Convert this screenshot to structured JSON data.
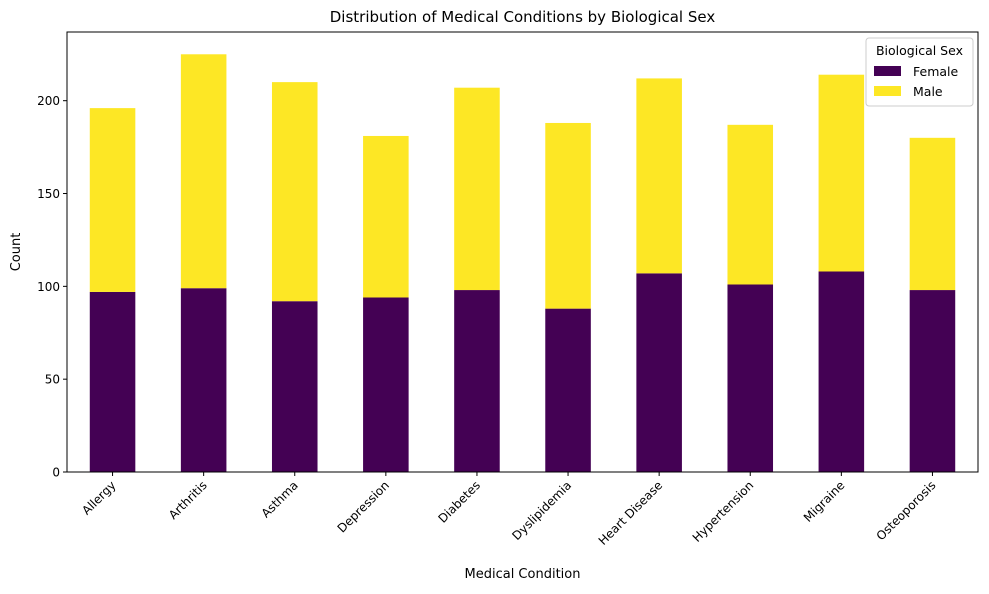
{
  "chart_data": {
    "type": "bar",
    "stacked": true,
    "title": "Distribution of Medical Conditions by Biological Sex",
    "xlabel": "Medical Condition",
    "ylabel": "Count",
    "categories": [
      "Allergy",
      "Arthritis",
      "Asthma",
      "Depression",
      "Diabetes",
      "Dyslipidemia",
      "Heart Disease",
      "Hypertension",
      "Migraine",
      "Osteoporosis"
    ],
    "series": [
      {
        "name": "Female",
        "color": "#440154",
        "values": [
          97,
          99,
          92,
          94,
          98,
          88,
          107,
          101,
          108,
          98
        ]
      },
      {
        "name": "Male",
        "color": "#fde725",
        "values": [
          99,
          126,
          118,
          87,
          109,
          100,
          105,
          86,
          106,
          82
        ]
      }
    ],
    "yticks": [
      0,
      50,
      100,
      150,
      200
    ],
    "ylim": [
      0,
      237
    ],
    "grid": false,
    "legend": {
      "title": "Biological Sex",
      "placement": "top-right"
    }
  }
}
